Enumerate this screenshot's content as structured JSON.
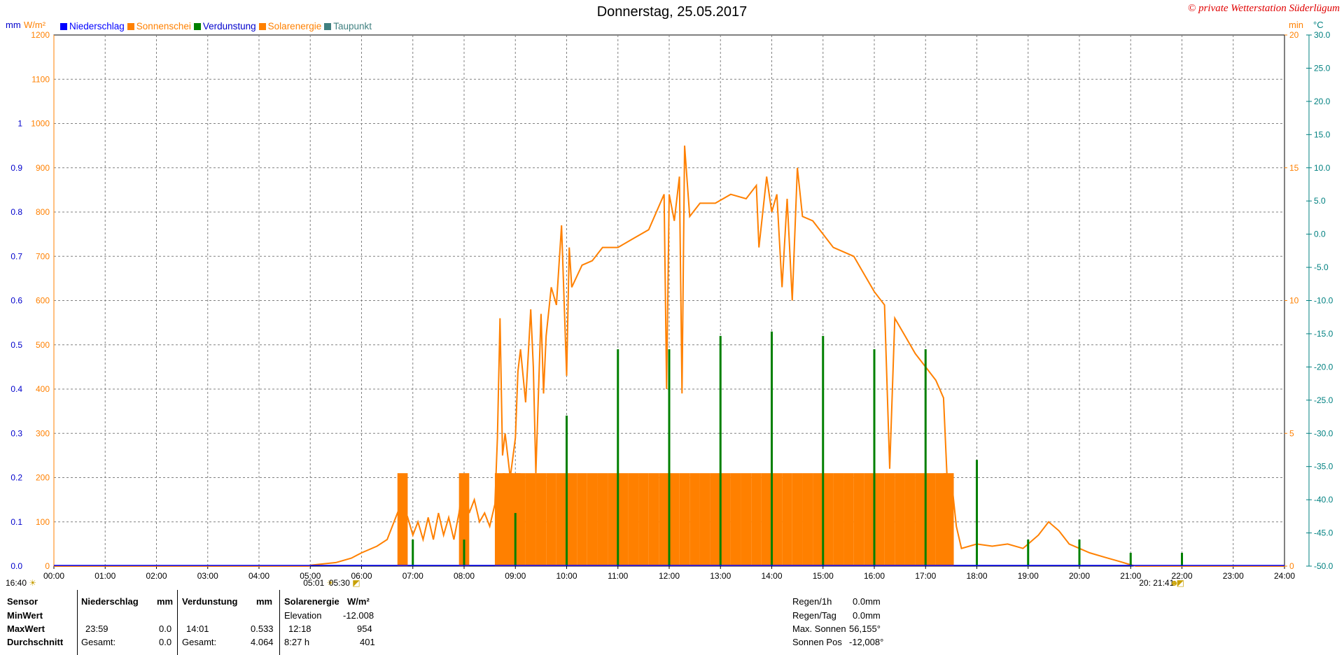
{
  "title": "Donnerstag, 25.05.2017",
  "copyright": "© private Wetterstation Süderlügum",
  "units": {
    "left1": "mm",
    "left2": "W/m²",
    "right1": "min",
    "right2": "°C"
  },
  "legend": [
    {
      "name": "Niederschlag",
      "color": "#0000ff"
    },
    {
      "name": "Sonnenschei",
      "color": "#ff8000"
    },
    {
      "name": "Verdunstung",
      "color": "#008000"
    },
    {
      "name": "Solarenergie",
      "color": "#ff8000"
    },
    {
      "name": "Taupunkt",
      "color": "#408080"
    }
  ],
  "colors": {
    "solar": "#ff8000",
    "sunshine": "#ff8000",
    "evap": "#008000",
    "precip": "#0000ff",
    "dew": "#408080",
    "mmaxis": "#0000cc",
    "wm2axis": "#ff8000",
    "tempaxis": "#008080",
    "grid": "#808080"
  },
  "chart_data": {
    "type": "line",
    "title": "Donnerstag, 25.05.2017",
    "x_ticks": [
      "00:00",
      "01:00",
      "02:00",
      "03:00",
      "04:00",
      "05:00",
      "06:00",
      "07:00",
      "08:00",
      "09:00",
      "10:00",
      "11:00",
      "12:00",
      "13:00",
      "14:00",
      "15:00",
      "16:00",
      "17:00",
      "18:00",
      "19:00",
      "20:00",
      "21:00",
      "22:00",
      "23:00",
      "24:00"
    ],
    "xlim": [
      0,
      24
    ],
    "axes": {
      "mm": {
        "ticks": [
          "0.0",
          "0.1",
          "0.2",
          "0.3",
          "0.4",
          "0.5",
          "0.6",
          "0.7",
          "0.8",
          "0.9",
          "1"
        ],
        "ylim": [
          0,
          1.2
        ]
      },
      "wm2": {
        "ticks": [
          "0",
          "100",
          "200",
          "300",
          "400",
          "500",
          "600",
          "700",
          "800",
          "900",
          "1000",
          "1100",
          "1200"
        ],
        "ylim": [
          0,
          1200
        ]
      },
      "min": {
        "ticks": [
          "0",
          "5",
          "10",
          "15",
          "20"
        ],
        "ylim": [
          0,
          20
        ]
      },
      "celsius": {
        "ticks": [
          "-50.0",
          "-45.0",
          "-40.0",
          "-35.0",
          "-30.0",
          "-25.0",
          "-20.0",
          "-15.0",
          "-10.0",
          "-5.0",
          "0.0",
          "5.0",
          "10.0",
          "15.0",
          "20.0",
          "25.0",
          "30.0"
        ],
        "ylim": [
          -50,
          30
        ]
      }
    },
    "series": [
      {
        "name": "Solarenergie",
        "axis": "wm2",
        "points": [
          [
            0,
            0
          ],
          [
            4.97,
            0
          ],
          [
            5.0,
            2
          ],
          [
            5.5,
            8
          ],
          [
            5.8,
            18
          ],
          [
            6.0,
            30
          ],
          [
            6.3,
            45
          ],
          [
            6.5,
            60
          ],
          [
            6.6,
            90
          ],
          [
            6.7,
            120
          ],
          [
            6.8,
            90
          ],
          [
            6.9,
            110
          ],
          [
            7.0,
            70
          ],
          [
            7.1,
            100
          ],
          [
            7.2,
            60
          ],
          [
            7.3,
            110
          ],
          [
            7.4,
            60
          ],
          [
            7.5,
            120
          ],
          [
            7.6,
            70
          ],
          [
            7.7,
            110
          ],
          [
            7.8,
            60
          ],
          [
            7.9,
            120
          ],
          [
            8.0,
            205
          ],
          [
            8.1,
            120
          ],
          [
            8.2,
            150
          ],
          [
            8.3,
            100
          ],
          [
            8.4,
            120
          ],
          [
            8.5,
            90
          ],
          [
            8.6,
            140
          ],
          [
            8.65,
            290
          ],
          [
            8.7,
            560
          ],
          [
            8.75,
            250
          ],
          [
            8.8,
            300
          ],
          [
            8.9,
            200
          ],
          [
            9.0,
            290
          ],
          [
            9.05,
            440
          ],
          [
            9.1,
            490
          ],
          [
            9.2,
            370
          ],
          [
            9.3,
            580
          ],
          [
            9.35,
            450
          ],
          [
            9.4,
            210
          ],
          [
            9.5,
            570
          ],
          [
            9.55,
            390
          ],
          [
            9.6,
            520
          ],
          [
            9.7,
            630
          ],
          [
            9.8,
            590
          ],
          [
            9.9,
            770
          ],
          [
            10.0,
            430
          ],
          [
            10.05,
            720
          ],
          [
            10.1,
            630
          ],
          [
            10.3,
            680
          ],
          [
            10.5,
            690
          ],
          [
            10.7,
            720
          ],
          [
            11.0,
            720
          ],
          [
            11.3,
            740
          ],
          [
            11.6,
            760
          ],
          [
            11.9,
            840
          ],
          [
            11.95,
            400
          ],
          [
            12.0,
            840
          ],
          [
            12.1,
            780
          ],
          [
            12.2,
            880
          ],
          [
            12.25,
            390
          ],
          [
            12.3,
            950
          ],
          [
            12.4,
            790
          ],
          [
            12.6,
            820
          ],
          [
            12.9,
            820
          ],
          [
            13.2,
            840
          ],
          [
            13.5,
            830
          ],
          [
            13.7,
            860
          ],
          [
            13.75,
            720
          ],
          [
            13.9,
            880
          ],
          [
            14.0,
            800
          ],
          [
            14.1,
            840
          ],
          [
            14.2,
            630
          ],
          [
            14.3,
            830
          ],
          [
            14.4,
            600
          ],
          [
            14.5,
            900
          ],
          [
            14.6,
            790
          ],
          [
            14.8,
            780
          ],
          [
            15.0,
            750
          ],
          [
            15.2,
            720
          ],
          [
            15.4,
            710
          ],
          [
            15.6,
            700
          ],
          [
            15.8,
            660
          ],
          [
            16.0,
            620
          ],
          [
            16.2,
            590
          ],
          [
            16.3,
            220
          ],
          [
            16.4,
            560
          ],
          [
            16.6,
            520
          ],
          [
            16.8,
            480
          ],
          [
            17.0,
            450
          ],
          [
            17.2,
            420
          ],
          [
            17.35,
            380
          ],
          [
            17.45,
            120
          ],
          [
            17.5,
            200
          ],
          [
            17.6,
            90
          ],
          [
            17.7,
            40
          ],
          [
            18.0,
            50
          ],
          [
            18.3,
            45
          ],
          [
            18.6,
            50
          ],
          [
            18.9,
            40
          ],
          [
            19.0,
            50
          ],
          [
            19.2,
            70
          ],
          [
            19.4,
            100
          ],
          [
            19.6,
            80
          ],
          [
            19.8,
            50
          ],
          [
            20.0,
            40
          ],
          [
            20.2,
            30
          ],
          [
            20.5,
            20
          ],
          [
            20.8,
            10
          ],
          [
            21.0,
            3
          ],
          [
            21.1,
            0
          ],
          [
            24,
            0
          ]
        ]
      },
      {
        "name": "Sonnenschein",
        "axis": "min",
        "bars": [
          [
            6.7,
            1
          ],
          [
            7.9,
            1
          ],
          [
            8.6,
            1
          ],
          [
            8.75,
            1
          ],
          [
            8.9,
            1
          ],
          [
            9.0,
            1
          ],
          [
            9.2,
            1
          ],
          [
            9.4,
            1
          ],
          [
            9.6,
            1
          ],
          [
            9.8,
            1
          ],
          [
            10.0,
            1
          ],
          [
            10.2,
            1
          ],
          [
            10.4,
            1
          ],
          [
            10.6,
            1
          ],
          [
            10.8,
            1
          ],
          [
            11.0,
            1
          ],
          [
            11.2,
            1
          ],
          [
            11.4,
            1
          ],
          [
            11.6,
            1
          ],
          [
            11.8,
            1
          ],
          [
            12.0,
            1
          ],
          [
            12.2,
            1
          ],
          [
            12.4,
            1
          ],
          [
            12.6,
            1
          ],
          [
            12.8,
            1
          ],
          [
            13.0,
            1
          ],
          [
            13.2,
            1
          ],
          [
            13.4,
            1
          ],
          [
            13.6,
            1
          ],
          [
            13.8,
            1
          ],
          [
            14.0,
            1
          ],
          [
            14.2,
            1
          ],
          [
            14.4,
            1
          ],
          [
            14.6,
            1
          ],
          [
            14.8,
            1
          ],
          [
            15.0,
            1
          ],
          [
            15.2,
            1
          ],
          [
            15.4,
            1
          ],
          [
            15.6,
            1
          ],
          [
            15.8,
            1
          ],
          [
            16.0,
            1
          ],
          [
            16.2,
            1
          ],
          [
            16.4,
            1
          ],
          [
            16.6,
            1
          ],
          [
            16.8,
            1
          ],
          [
            17.0,
            1
          ],
          [
            17.2,
            1
          ],
          [
            17.35,
            1
          ]
        ]
      },
      {
        "name": "Verdunstung",
        "axis": "mm",
        "points": [
          [
            7.0,
            0.06
          ],
          [
            8.0,
            0.06
          ],
          [
            9.0,
            0.12
          ],
          [
            10.0,
            0.34
          ],
          [
            11.0,
            0.49
          ],
          [
            12.0,
            0.49
          ],
          [
            13.0,
            0.52
          ],
          [
            14.0,
            0.53
          ],
          [
            15.0,
            0.52
          ],
          [
            16.0,
            0.49
          ],
          [
            17.0,
            0.49
          ],
          [
            18.0,
            0.24
          ],
          [
            19.0,
            0.06
          ],
          [
            20.0,
            0.06
          ],
          [
            21.0,
            0.03
          ],
          [
            22.0,
            0.03
          ]
        ]
      }
    ]
  },
  "event_marks": [
    {
      "time": "16:40",
      "symbol": "☀",
      "t": -0.2
    },
    {
      "time": "05:01",
      "symbol": "☀",
      "t": 5.0
    },
    {
      "time": "05:30",
      "symbol": "◩",
      "t": 5.5
    },
    {
      "time": "20: 21:41",
      "symbol": "◩",
      "t": 21.3
    },
    {
      "time": "",
      "symbol": "☻",
      "t": 21.9
    }
  ],
  "table": {
    "headers": {
      "sensor": "Sensor",
      "precip": "Niederschlag",
      "precip_unit": "mm",
      "evap": "Verdunstung",
      "evap_unit": "mm",
      "solar": "Solarenergie",
      "solar_unit": "W/m²"
    },
    "rows": [
      {
        "label": "MinWert",
        "c1": "",
        "c2": "",
        "c3": "",
        "c4": "",
        "c5": "Elevation",
        "c6": "-12.008"
      },
      {
        "label": "MaxWert",
        "c1": "23:59",
        "c2": "0.0",
        "c3": "14:01",
        "c4": "0.533",
        "c5": "12:18",
        "c6": "954"
      },
      {
        "label": "Durchschnitt",
        "c1": "Gesamt:",
        "c2": "0.0",
        "c3": "Gesamt:",
        "c4": "4.064",
        "c5": "8:27 h",
        "c6": "401"
      }
    ]
  },
  "right_info": [
    {
      "label": "Regen/1h",
      "value": "0.0mm"
    },
    {
      "label": "Regen/Tag",
      "value": "0.0mm"
    },
    {
      "label": "Max. Sonnen",
      "value": "56,155°"
    },
    {
      "label": "Sonnen Pos",
      "value": "-12,008°"
    }
  ]
}
